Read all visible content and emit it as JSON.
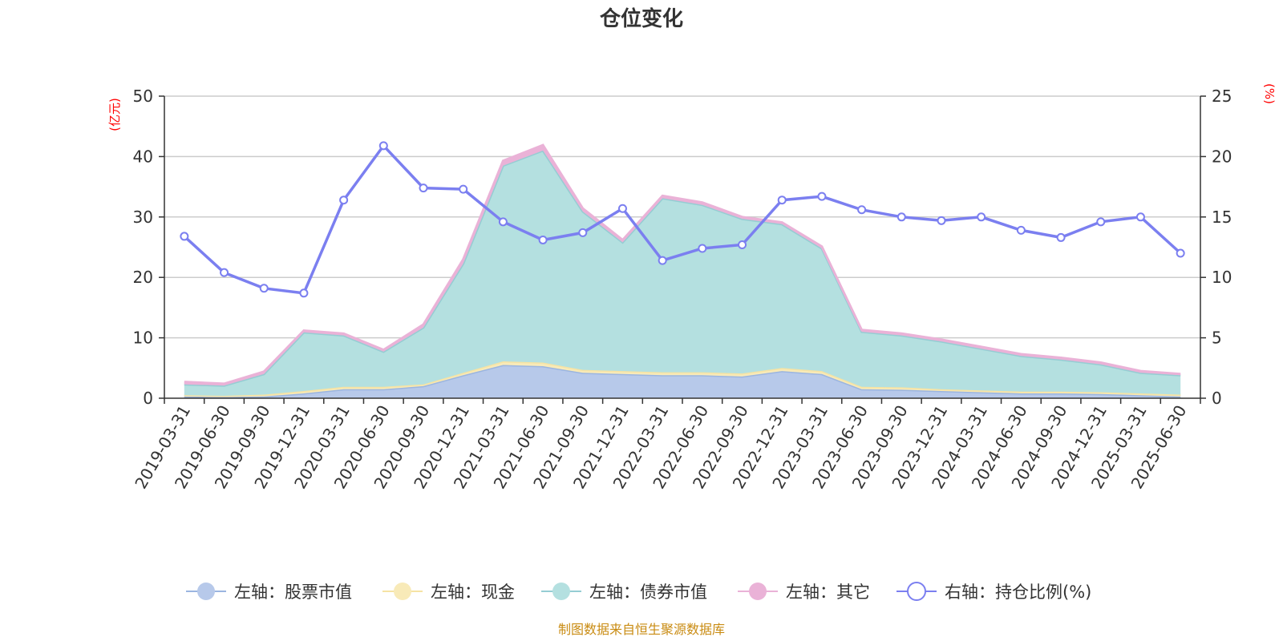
{
  "chart_data": {
    "type": "area",
    "title": "仓位变化",
    "left_axis_unit": "(亿元)",
    "right_axis_unit": "(%)",
    "left_ylim": [
      0,
      50
    ],
    "left_ticks": [
      "0",
      "10",
      "20",
      "30",
      "40",
      "50"
    ],
    "right_ylim": [
      0,
      25
    ],
    "right_ticks": [
      "0",
      "5",
      "10",
      "15",
      "20",
      "25"
    ],
    "grid": true,
    "legend_position": "bottom",
    "categories": [
      "2019-03-31",
      "2019-06-30",
      "2019-09-30",
      "2019-12-31",
      "2020-03-31",
      "2020-06-30",
      "2020-09-30",
      "2020-12-31",
      "2021-03-31",
      "2021-06-30",
      "2021-09-30",
      "2021-12-31",
      "2022-03-31",
      "2022-06-30",
      "2022-09-30",
      "2022-12-31",
      "2023-03-31",
      "2023-06-30",
      "2023-09-30",
      "2023-12-31",
      "2024-03-31",
      "2024-06-30",
      "2024-09-30",
      "2024-12-31",
      "2025-03-31",
      "2025-06-30"
    ],
    "series": [
      {
        "name": "左轴：股票市值",
        "axis": "left",
        "kind": "stacked-area",
        "color": "#9bb5e0",
        "fill": "#b7c9ea",
        "values": [
          0.3,
          0.2,
          0.3,
          0.8,
          1.5,
          1.5,
          2.0,
          3.8,
          5.5,
          5.3,
          4.2,
          4.0,
          3.8,
          3.8,
          3.6,
          4.5,
          4.0,
          1.5,
          1.4,
          1.2,
          1.0,
          0.8,
          0.8,
          0.7,
          0.5,
          0.3
        ]
      },
      {
        "name": "左轴：现金",
        "axis": "left",
        "kind": "stacked-area",
        "color": "#f6e3a4",
        "fill": "#f8eab8",
        "values": [
          0.2,
          0.2,
          0.3,
          0.4,
          0.4,
          0.4,
          0.3,
          0.4,
          0.6,
          0.6,
          0.5,
          0.5,
          0.5,
          0.5,
          0.5,
          0.5,
          0.5,
          0.4,
          0.4,
          0.3,
          0.3,
          0.3,
          0.3,
          0.3,
          0.3,
          0.3
        ]
      },
      {
        "name": "左轴：债券市值",
        "axis": "left",
        "kind": "stacked-area",
        "color": "#95cdd3",
        "fill": "#b4e0e0",
        "values": [
          1.8,
          1.7,
          3.4,
          9.7,
          8.5,
          5.8,
          9.4,
          18.1,
          32.4,
          35.1,
          26.2,
          21.3,
          28.8,
          27.7,
          25.6,
          23.8,
          20.3,
          9.1,
          8.6,
          7.9,
          6.9,
          5.9,
          5.3,
          4.6,
          3.4,
          3.2
        ]
      },
      {
        "name": "左轴：其它",
        "axis": "left",
        "kind": "stacked-area",
        "color": "#eab2d7",
        "fill": "#eab2d7",
        "values": [
          0.4,
          0.3,
          0.4,
          0.3,
          0.3,
          0.3,
          0.5,
          0.7,
          0.8,
          0.9,
          0.5,
          0.4,
          0.4,
          0.4,
          0.3,
          0.3,
          0.3,
          0.3,
          0.3,
          0.3,
          0.3,
          0.3,
          0.3,
          0.3,
          0.3,
          0.2
        ]
      },
      {
        "name": "右轴：持仓比例(%)",
        "axis": "right",
        "kind": "line",
        "color": "#7b7ff0",
        "values": [
          13.4,
          10.4,
          9.1,
          8.7,
          16.4,
          20.9,
          17.4,
          17.3,
          14.6,
          13.1,
          13.7,
          15.7,
          11.4,
          12.4,
          12.7,
          16.4,
          16.7,
          15.6,
          15.0,
          14.7,
          15.0,
          13.9,
          13.3,
          14.6,
          15.0,
          12.0
        ]
      }
    ],
    "source_note": "制图数据来自恒生聚源数据库"
  }
}
